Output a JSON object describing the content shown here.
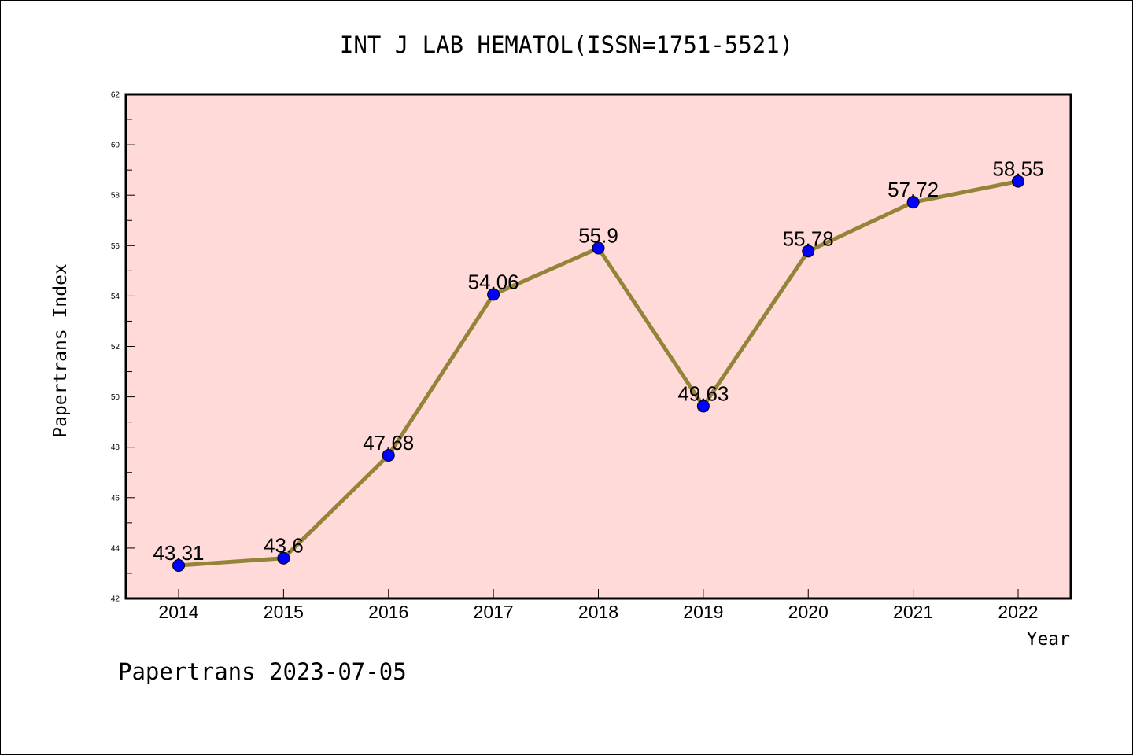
{
  "chart_data": {
    "type": "line",
    "title": "INT J LAB HEMATOL(ISSN=1751-5521)",
    "xlabel": "Year",
    "ylabel": "Papertrans Index",
    "footer": "Papertrans 2023-07-05",
    "x": [
      "2014",
      "2015",
      "2016",
      "2017",
      "2018",
      "2019",
      "2020",
      "2021",
      "2022"
    ],
    "series": [
      {
        "name": "Papertrans Index",
        "values": [
          43.31,
          43.6,
          47.68,
          54.06,
          55.9,
          49.63,
          55.78,
          57.72,
          58.55
        ],
        "labels": [
          "43.31",
          "43.6",
          "47.68",
          "54.06",
          "55.9",
          "49.63",
          "55.78",
          "57.72",
          "58.55"
        ]
      }
    ],
    "ylim": [
      42,
      62
    ],
    "yticks": [
      "42",
      "44",
      "46",
      "48",
      "50",
      "52",
      "54",
      "56",
      "58",
      "60",
      "62"
    ],
    "grid": false,
    "colors": {
      "plot_background": "#ffdad8",
      "line": "#948439",
      "marker": "#0000ff",
      "axis": "#000000"
    }
  }
}
